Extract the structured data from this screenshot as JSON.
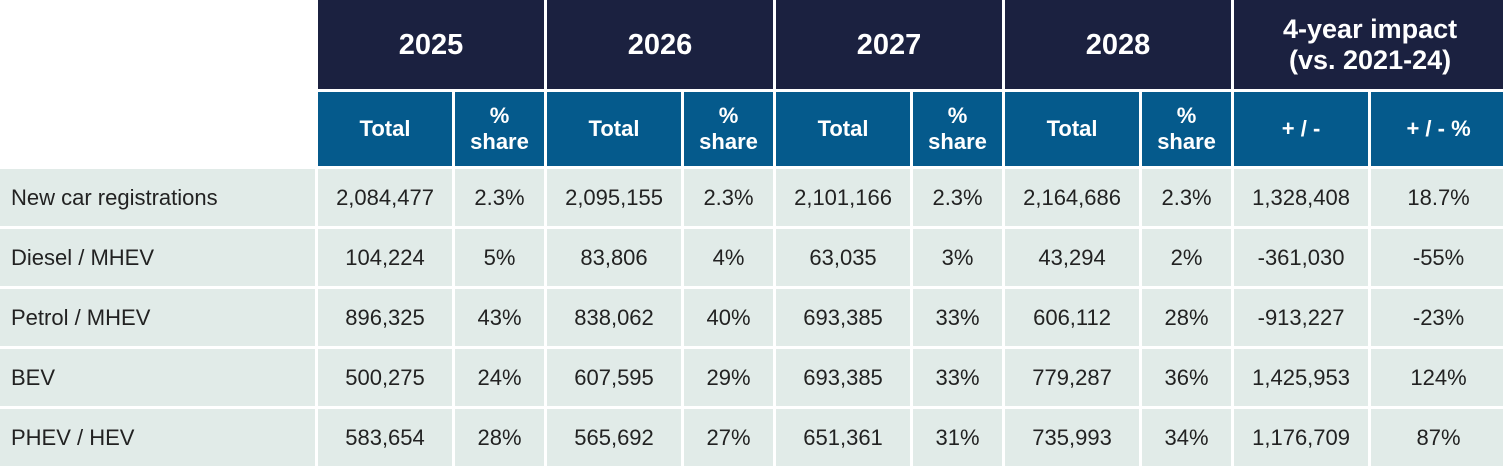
{
  "header": {
    "years": [
      "2025",
      "2026",
      "2027",
      "2028"
    ],
    "impact": "4-year impact\n(vs. 2021-24)",
    "total_label": "Total",
    "share_label": "%\nshare",
    "diff_label": "+ / -",
    "diff_pct_label": "+ / - %"
  },
  "rows": [
    {
      "label": "New car registrations",
      "cells": [
        "2,084,477",
        "2.3%",
        "2,095,155",
        "2.3%",
        "2,101,166",
        "2.3%",
        "2,164,686",
        "2.3%",
        "1,328,408",
        "18.7%"
      ]
    },
    {
      "label": "Diesel / MHEV",
      "cells": [
        "104,224",
        "5%",
        "83,806",
        "4%",
        "63,035",
        "3%",
        "43,294",
        "2%",
        "-361,030",
        "-55%"
      ]
    },
    {
      "label": "Petrol / MHEV",
      "cells": [
        "896,325",
        "43%",
        "838,062",
        "40%",
        "693,385",
        "33%",
        "606,112",
        "28%",
        "-913,227",
        "-23%"
      ]
    },
    {
      "label": "BEV",
      "cells": [
        "500,275",
        "24%",
        "607,595",
        "29%",
        "693,385",
        "33%",
        "779,287",
        "36%",
        "1,425,953",
        "124%"
      ]
    },
    {
      "label": "PHEV / HEV",
      "cells": [
        "583,654",
        "28%",
        "565,692",
        "27%",
        "651,361",
        "31%",
        "735,993",
        "34%",
        "1,176,709",
        "87%"
      ]
    }
  ]
}
